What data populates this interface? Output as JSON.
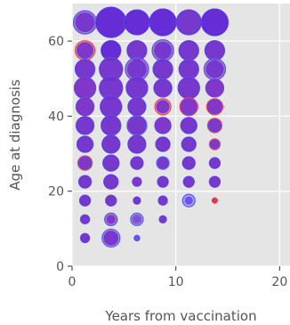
{
  "chart_data": {
    "type": "scatter",
    "title": "",
    "xlabel": "Years from vaccination",
    "ylabel": "Age at diagnosis",
    "xlim": [
      0,
      21
    ],
    "ylim": [
      0,
      70
    ],
    "xticks": [
      0,
      10,
      20
    ],
    "yticks": [
      0,
      20,
      40,
      60
    ],
    "grid": true,
    "legend": "none",
    "colors": {
      "background": "#e5e5e5",
      "grid": "#ffffff",
      "red": "#ff3b3b",
      "blue": "#4a5bff",
      "purple": "#6a2ccf",
      "text": "#555555"
    },
    "points": [
      {
        "x": 1.25,
        "y": 65,
        "rs": 13,
        "rc": 11,
        "bs": 13,
        "bc": 11,
        "color": "#6e2bcf"
      },
      {
        "x": 3.75,
        "y": 65,
        "rs": 17,
        "rc": 17,
        "bs": 17,
        "bc": 17,
        "color": "#5a1ed9"
      },
      {
        "x": 6.25,
        "y": 65,
        "rs": 14,
        "rc": 14,
        "bs": 14,
        "bc": 14,
        "color": "#5a1ed9"
      },
      {
        "x": 8.75,
        "y": 65,
        "rs": 15,
        "rc": 15,
        "bs": 15,
        "bc": 15,
        "color": "#5a1ed9"
      },
      {
        "x": 11.25,
        "y": 65,
        "rs": 14,
        "rc": 14,
        "bs": 14,
        "bc": 14,
        "color": "#6e2bcf"
      },
      {
        "x": 13.75,
        "y": 65,
        "rs": 15,
        "rc": 15,
        "bs": 15,
        "bc": 15,
        "color": "#5a1ed9"
      },
      {
        "x": 1.25,
        "y": 57.5,
        "rs": 11,
        "rc": 11,
        "bs": 9,
        "bc": 9,
        "color": "#7a2bc8"
      },
      {
        "x": 3.75,
        "y": 57.5,
        "rs": 11,
        "rc": 11,
        "bs": 11,
        "bc": 11,
        "color": "#5a1ed9"
      },
      {
        "x": 6.25,
        "y": 57.5,
        "rs": 11,
        "rc": 11,
        "bs": 11,
        "bc": 11,
        "color": "#6e2bcf"
      },
      {
        "x": 8.75,
        "y": 57.5,
        "rs": 12,
        "rc": 10,
        "bs": 12,
        "bc": 12,
        "color": "#6e2bcf"
      },
      {
        "x": 11.25,
        "y": 57.5,
        "rs": 11,
        "rc": 11,
        "bs": 11,
        "bc": 11,
        "color": "#6e2bcf"
      },
      {
        "x": 13.75,
        "y": 57.5,
        "rs": 11,
        "rc": 11,
        "bs": 11,
        "bc": 11,
        "color": "#6e2bcf"
      },
      {
        "x": 1.25,
        "y": 52.5,
        "rs": 11,
        "rc": 11,
        "bs": 11,
        "bc": 11,
        "color": "#6e2bcf"
      },
      {
        "x": 3.75,
        "y": 52.5,
        "rs": 13,
        "rc": 13,
        "bs": 13,
        "bc": 13,
        "color": "#6e2bcf"
      },
      {
        "x": 6.25,
        "y": 52.5,
        "rs": 13,
        "rc": 11,
        "bs": 13,
        "bc": 13,
        "color": "#6e2bcf"
      },
      {
        "x": 8.75,
        "y": 52.5,
        "rs": 11,
        "rc": 11,
        "bs": 11,
        "bc": 11,
        "color": "#6e2bcf"
      },
      {
        "x": 11.25,
        "y": 52.5,
        "rs": 11,
        "rc": 11,
        "bs": 11,
        "bc": 11,
        "color": "#6e2bcf"
      },
      {
        "x": 13.75,
        "y": 52.5,
        "rs": 12,
        "rc": 10,
        "bs": 12,
        "bc": 12,
        "color": "#6e2bcf"
      },
      {
        "x": 1.25,
        "y": 47.5,
        "rs": 12,
        "rc": 12,
        "bs": 12,
        "bc": 12,
        "color": "#7a2bc8"
      },
      {
        "x": 3.75,
        "y": 47.5,
        "rs": 13,
        "rc": 13,
        "bs": 13,
        "bc": 13,
        "color": "#6e2bcf"
      },
      {
        "x": 6.25,
        "y": 47.5,
        "rs": 12,
        "rc": 12,
        "bs": 12,
        "bc": 12,
        "color": "#6e2bcf"
      },
      {
        "x": 8.75,
        "y": 47.5,
        "rs": 10,
        "rc": 10,
        "bs": 10,
        "bc": 10,
        "color": "#6e2bcf"
      },
      {
        "x": 11.25,
        "y": 47.5,
        "rs": 12,
        "rc": 12,
        "bs": 12,
        "bc": 12,
        "color": "#6e2bcf"
      },
      {
        "x": 13.75,
        "y": 47.5,
        "rs": 10,
        "rc": 10,
        "bs": 10,
        "bc": 10,
        "color": "#7a2bc8"
      },
      {
        "x": 1.25,
        "y": 42.5,
        "rs": 10,
        "rc": 10,
        "bs": 10,
        "bc": 10,
        "color": "#7a2bc8"
      },
      {
        "x": 3.75,
        "y": 42.5,
        "rs": 12,
        "rc": 12,
        "bs": 12,
        "bc": 12,
        "color": "#6e2bcf"
      },
      {
        "x": 6.25,
        "y": 42.5,
        "rs": 10,
        "rc": 10,
        "bs": 10,
        "bc": 10,
        "color": "#6e2bcf"
      },
      {
        "x": 8.75,
        "y": 42.5,
        "rs": 9,
        "rc": 9,
        "bs": 7,
        "bc": 7,
        "color": "#7a2bc8"
      },
      {
        "x": 11.25,
        "y": 42.5,
        "rs": 10,
        "rc": 10,
        "bs": 9,
        "bc": 9,
        "color": "#7a2bc8"
      },
      {
        "x": 13.75,
        "y": 42.5,
        "rs": 9,
        "rc": 9,
        "bs": 8,
        "bc": 8,
        "color": "#7a2bc8"
      },
      {
        "x": 1.25,
        "y": 37.5,
        "rs": 10,
        "rc": 10,
        "bs": 10,
        "bc": 10,
        "color": "#6e2bcf"
      },
      {
        "x": 3.75,
        "y": 37.5,
        "rs": 11,
        "rc": 11,
        "bs": 11,
        "bc": 11,
        "color": "#6e2bcf"
      },
      {
        "x": 6.25,
        "y": 37.5,
        "rs": 10,
        "rc": 10,
        "bs": 11,
        "bc": 11,
        "color": "#6e2bcf"
      },
      {
        "x": 8.75,
        "y": 37.5,
        "rs": 9,
        "rc": 9,
        "bs": 9,
        "bc": 9,
        "color": "#7a2bc8"
      },
      {
        "x": 11.25,
        "y": 37.5,
        "rs": 9,
        "rc": 9,
        "bs": 9,
        "bc": 9,
        "color": "#6e2bcf"
      },
      {
        "x": 13.75,
        "y": 37.5,
        "rs": 8,
        "rc": 8,
        "bs": 7,
        "bc": 7,
        "color": "#7a2bc8"
      },
      {
        "x": 1.25,
        "y": 32.5,
        "rs": 9,
        "rc": 9,
        "bs": 9,
        "bc": 9,
        "color": "#6e2bcf"
      },
      {
        "x": 3.75,
        "y": 32.5,
        "rs": 10,
        "rc": 10,
        "bs": 10,
        "bc": 10,
        "color": "#6e2bcf"
      },
      {
        "x": 6.25,
        "y": 32.5,
        "rs": 10,
        "rc": 10,
        "bs": 10,
        "bc": 10,
        "color": "#6e2bcf"
      },
      {
        "x": 8.75,
        "y": 32.5,
        "rs": 8,
        "rc": 8,
        "bs": 8,
        "bc": 8,
        "color": "#6e2bcf"
      },
      {
        "x": 11.25,
        "y": 32.5,
        "rs": 8,
        "rc": 8,
        "bs": 8,
        "bc": 8,
        "color": "#6e2bcf"
      },
      {
        "x": 13.75,
        "y": 32.5,
        "rs": 6,
        "rc": 6,
        "bs": 5,
        "bc": 5,
        "color": "#7a2bc8"
      },
      {
        "x": 1.25,
        "y": 27.5,
        "rs": 8,
        "rc": 8,
        "bs": 7,
        "bc": 7,
        "color": "#7a2bc8"
      },
      {
        "x": 3.75,
        "y": 27.5,
        "rs": 9,
        "rc": 9,
        "bs": 9,
        "bc": 9,
        "color": "#6e2bcf"
      },
      {
        "x": 6.25,
        "y": 27.5,
        "rs": 7,
        "rc": 7,
        "bs": 7,
        "bc": 7,
        "color": "#6e2bcf"
      },
      {
        "x": 8.75,
        "y": 27.5,
        "rs": 6,
        "rc": 6,
        "bs": 7,
        "bc": 7,
        "color": "#6e2bcf"
      },
      {
        "x": 11.25,
        "y": 27.5,
        "rs": 7,
        "rc": 7,
        "bs": 7,
        "bc": 7,
        "color": "#6e2bcf"
      },
      {
        "x": 13.75,
        "y": 27.5,
        "rs": 6,
        "rc": 6,
        "bs": 6,
        "bc": 6,
        "color": "#6e2bcf"
      },
      {
        "x": 1.25,
        "y": 22.5,
        "rs": 7,
        "rc": 7,
        "bs": 7,
        "bc": 7,
        "color": "#6e2bcf"
      },
      {
        "x": 3.75,
        "y": 22.5,
        "rs": 8,
        "rc": 8,
        "bs": 8,
        "bc": 8,
        "color": "#6e2bcf"
      },
      {
        "x": 6.25,
        "y": 22.5,
        "rs": 5,
        "rc": 5,
        "bs": 5,
        "bc": 5,
        "color": "#7a2bc8"
      },
      {
        "x": 8.75,
        "y": 22.5,
        "rs": 6,
        "rc": 6,
        "bs": 6,
        "bc": 6,
        "color": "#6e2bcf"
      },
      {
        "x": 11.25,
        "y": 22.5,
        "rs": 6,
        "rc": 6,
        "bs": 6,
        "bc": 6,
        "color": "#6e2bcf"
      },
      {
        "x": 13.75,
        "y": 22.5,
        "rs": 6,
        "rc": 6,
        "bs": 6,
        "bc": 6,
        "color": "#6e2bcf"
      },
      {
        "x": 1.25,
        "y": 17.5,
        "rs": 6,
        "rc": 6,
        "bs": 6,
        "bc": 6,
        "color": "#6e2bcf"
      },
      {
        "x": 3.75,
        "y": 17.5,
        "rs": 6,
        "rc": 6,
        "bs": 6,
        "bc": 6,
        "color": "#6e2bcf"
      },
      {
        "x": 6.25,
        "y": 17.5,
        "rs": 4,
        "rc": 4,
        "bs": 4,
        "bc": 4,
        "color": "#6e2bcf"
      },
      {
        "x": 8.75,
        "y": 17.5,
        "rs": 5,
        "rc": 5,
        "bs": 5,
        "bc": 5,
        "color": "#6e2bcf"
      },
      {
        "x": 11.25,
        "y": 17.5,
        "rs": 4,
        "rc": 4,
        "bs": 7,
        "bc": 4,
        "color": "#5a4dff"
      },
      {
        "x": 13.75,
        "y": 17.5,
        "rs": 3,
        "rc": 3,
        "bs": 2,
        "bc": 2,
        "color": "#d23b6a"
      },
      {
        "x": 1.25,
        "y": 12.5,
        "rs": 5,
        "rc": 5,
        "bs": 5,
        "bc": 5,
        "color": "#6e2bcf"
      },
      {
        "x": 3.75,
        "y": 12.5,
        "rs": 7,
        "rc": 5,
        "bs": 7,
        "bc": 7,
        "color": "#7a2bc8"
      },
      {
        "x": 6.25,
        "y": 12.5,
        "rs": 5,
        "rc": 4,
        "bs": 7,
        "bc": 7,
        "color": "#5a4dff"
      },
      {
        "x": 8.75,
        "y": 12.5,
        "rs": 4,
        "rc": 4,
        "bs": 4,
        "bc": 4,
        "color": "#6e2bcf"
      },
      {
        "x": 1.25,
        "y": 7.5,
        "rs": 5,
        "rc": 5,
        "bs": 5,
        "bc": 5,
        "color": "#6e2bcf"
      },
      {
        "x": 3.75,
        "y": 7.5,
        "rs": 8,
        "rc": 8,
        "bs": 10,
        "bc": 10,
        "color": "#6e2bcf"
      },
      {
        "x": 6.25,
        "y": 7.5,
        "rs": 3,
        "rc": 3,
        "bs": 3,
        "bc": 3,
        "color": "#5a4dff"
      }
    ]
  }
}
